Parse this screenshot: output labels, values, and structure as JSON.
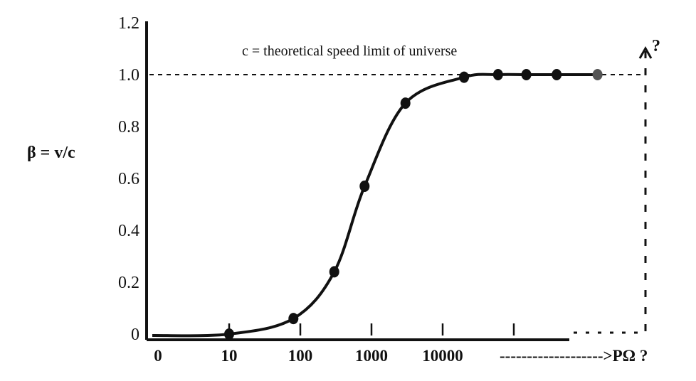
{
  "chart_data": {
    "type": "line",
    "title": "",
    "xlabel": "",
    "ylabel": "β = v/c",
    "x_scale": "log",
    "y_ticks": [
      "1.2",
      "1.0",
      "0.8",
      "0.6",
      "0.4",
      "0.2",
      "0"
    ],
    "x_ticks": [
      "0",
      "10",
      "100",
      "1000",
      "10000"
    ],
    "ylim": [
      0,
      1.2
    ],
    "grid": false,
    "legend": "none",
    "limit_line": {
      "y": 1.0,
      "label": "c = theoretical speed limit of universe"
    },
    "x_extension_text": "------------------->PΩ ?",
    "top_question": "?",
    "series": [
      {
        "name": "",
        "x": [
          10,
          80,
          300,
          800,
          3000,
          20000,
          60000,
          150000,
          400000,
          1500000
        ],
        "y": [
          0.0,
          0.06,
          0.24,
          0.57,
          0.89,
          0.99,
          1.0,
          1.0,
          1.0,
          1.0
        ],
        "color": "#111111"
      }
    ]
  }
}
